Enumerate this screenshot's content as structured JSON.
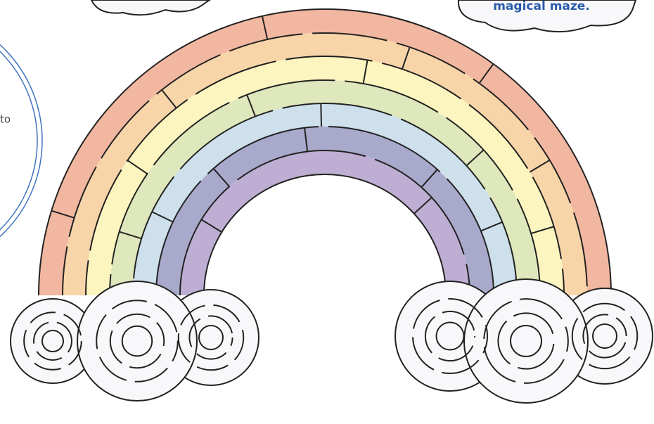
{
  "page": {
    "side_note": "to",
    "cloud_note": "magical maze."
  }
}
